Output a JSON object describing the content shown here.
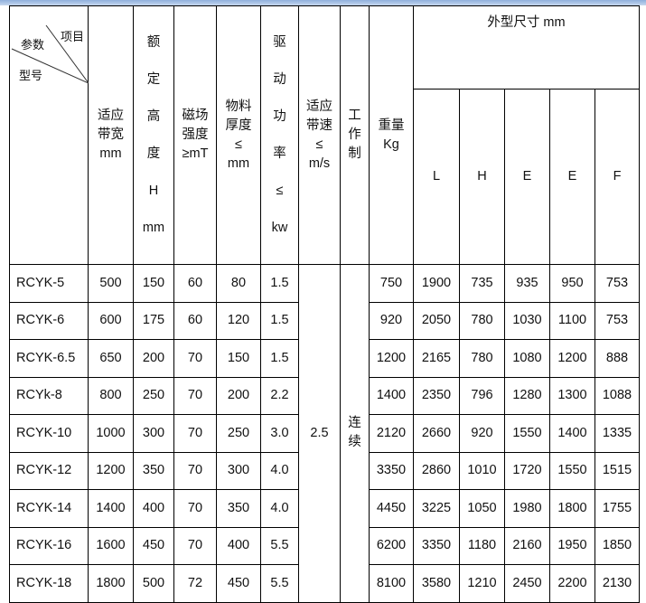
{
  "header": {
    "corner_item": "项目",
    "corner_param": "参数",
    "corner_model": "型号",
    "cols": [
      "适应\n带宽\nmm",
      "额\n定\n高\n度\nH\nmm",
      "磁场\n强度\n≥mT",
      "物料\n厚度\n≤\nmm",
      "驱\n动\n功\n率\n≤\nkw",
      "适应\n带速\n≤\nm/s",
      "工\n作\n制",
      "重量\nKg"
    ],
    "dims_title": "外型尺寸 mm",
    "dims": [
      "L",
      "H",
      "E",
      "E",
      "F"
    ]
  },
  "shared": {
    "speed": "2.5",
    "duty": "连\n续"
  },
  "rows": [
    {
      "model": "RCYK-5",
      "width": "500",
      "height": "150",
      "field": "60",
      "thick": "80",
      "power": "1.5",
      "weight": "750",
      "L": "1900",
      "H": "735",
      "E1": "935",
      "E2": "950",
      "F": "753"
    },
    {
      "model": "RCYK-6",
      "width": "600",
      "height": "175",
      "field": "60",
      "thick": "120",
      "power": "1.5",
      "weight": "920",
      "L": "2050",
      "H": "780",
      "E1": "1030",
      "E2": "1100",
      "F": "753"
    },
    {
      "model": "RCYK-6.5",
      "width": "650",
      "height": "200",
      "field": "70",
      "thick": "150",
      "power": "1.5",
      "weight": "1200",
      "L": "2165",
      "H": "780",
      "E1": "1080",
      "E2": "1200",
      "F": "888"
    },
    {
      "model": "RCYk-8",
      "width": "800",
      "height": "250",
      "field": "70",
      "thick": "200",
      "power": "2.2",
      "weight": "1400",
      "L": "2350",
      "H": "796",
      "E1": "1280",
      "E2": "1300",
      "F": "1088"
    },
    {
      "model": "RCYK-10",
      "width": "1000",
      "height": "300",
      "field": "70",
      "thick": "250",
      "power": "3.0",
      "weight": "2120",
      "L": "2660",
      "H": "920",
      "E1": "1550",
      "E2": "1400",
      "F": "1335"
    },
    {
      "model": "RCYK-12",
      "width": "1200",
      "height": "350",
      "field": "70",
      "thick": "300",
      "power": "4.0",
      "weight": "3350",
      "L": "2860",
      "H": "1010",
      "E1": "1720",
      "E2": "1550",
      "F": "1515"
    },
    {
      "model": "RCYK-14",
      "width": "1400",
      "height": "400",
      "field": "70",
      "thick": "350",
      "power": "4.0",
      "weight": "4450",
      "L": "3225",
      "H": "1050",
      "E1": "1980",
      "E2": "1800",
      "F": "1755"
    },
    {
      "model": "RCYK-16",
      "width": "1600",
      "height": "450",
      "field": "70",
      "thick": "400",
      "power": "5.5",
      "weight": "6200",
      "L": "3350",
      "H": "1180",
      "E1": "2160",
      "E2": "1950",
      "F": "1850"
    },
    {
      "model": "RCYK-18",
      "width": "1800",
      "height": "500",
      "field": "72",
      "thick": "450",
      "power": "5.5",
      "weight": "8100",
      "L": "3580",
      "H": "1210",
      "E1": "2450",
      "E2": "2200",
      "F": "2130"
    }
  ]
}
